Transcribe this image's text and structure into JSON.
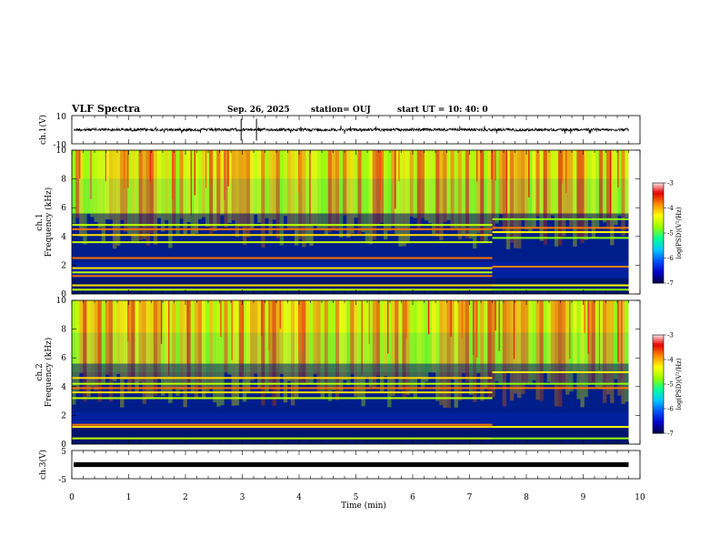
{
  "header": {
    "title": "VLF Spectra",
    "date": "Sep. 26, 2025",
    "station": "station= OUJ",
    "start": "start  UT =   10: 40: 0"
  },
  "chart_data": {
    "type": "heatmap",
    "xlabel": "Time  (min)",
    "xlim": [
      0,
      10
    ],
    "xticks": [
      "0",
      "1",
      "2",
      "3",
      "4",
      "5",
      "6",
      "7",
      "8",
      "9",
      "10"
    ],
    "data_end_min": 9.8,
    "change_time_min": 7.4,
    "panels": [
      {
        "kind": "waveform",
        "ylabel": "ch.1(V)",
        "ylim": [
          -10,
          10
        ],
        "yticks": [
          "10",
          "-10"
        ],
        "level_v": 0,
        "amplitude_v": 1
      },
      {
        "kind": "spectrogram",
        "ylabel_lines": [
          "ch.1",
          "Frequency  (kHz)"
        ],
        "ylim_khz": [
          0,
          10
        ],
        "yticks": [
          "0",
          "2",
          "4",
          "6",
          "8",
          "10"
        ],
        "lines_khz": [
          0.3,
          0.6,
          1.25,
          1.5,
          1.8,
          2.5,
          3.6,
          4.1,
          4.5,
          4.8
        ],
        "lines_after_khz": [
          0.3,
          0.6,
          1.9,
          3.9,
          4.3,
          4.6,
          5.2
        ],
        "noise_floor_khz": 5.6
      },
      {
        "kind": "spectrogram",
        "ylabel_lines": [
          "ch.2",
          "Frequency  (kHz)"
        ],
        "ylim_khz": [
          0,
          10
        ],
        "yticks": [
          "0",
          "2",
          "4",
          "6",
          "8",
          "10"
        ],
        "lines_khz": [
          0.4,
          1.2,
          1.35,
          3.2,
          3.6,
          3.9,
          4.2,
          4.6
        ],
        "lines_after_khz": [
          0.4,
          1.2,
          3.9,
          4.2,
          5.0
        ],
        "noise_floor_khz": 5.0
      },
      {
        "kind": "waveform",
        "ylabel": "ch.3(V)",
        "ylim": [
          -5,
          5
        ],
        "yticks": [
          "5",
          "-5"
        ],
        "level_v": 0,
        "amplitude_v": 0.2
      }
    ],
    "colorbar": {
      "label": "log(PSD)(V²/Hz)",
      "range": [
        -7,
        -3
      ],
      "ticks": [
        "-3",
        "-4",
        "-5",
        "-6",
        "-7"
      ],
      "colors": [
        "#00003c",
        "#0000c8",
        "#0050ff",
        "#00c8ff",
        "#00ff96",
        "#96ff00",
        "#ffff00",
        "#ff8c00",
        "#e60000",
        "#ffffff"
      ]
    }
  }
}
